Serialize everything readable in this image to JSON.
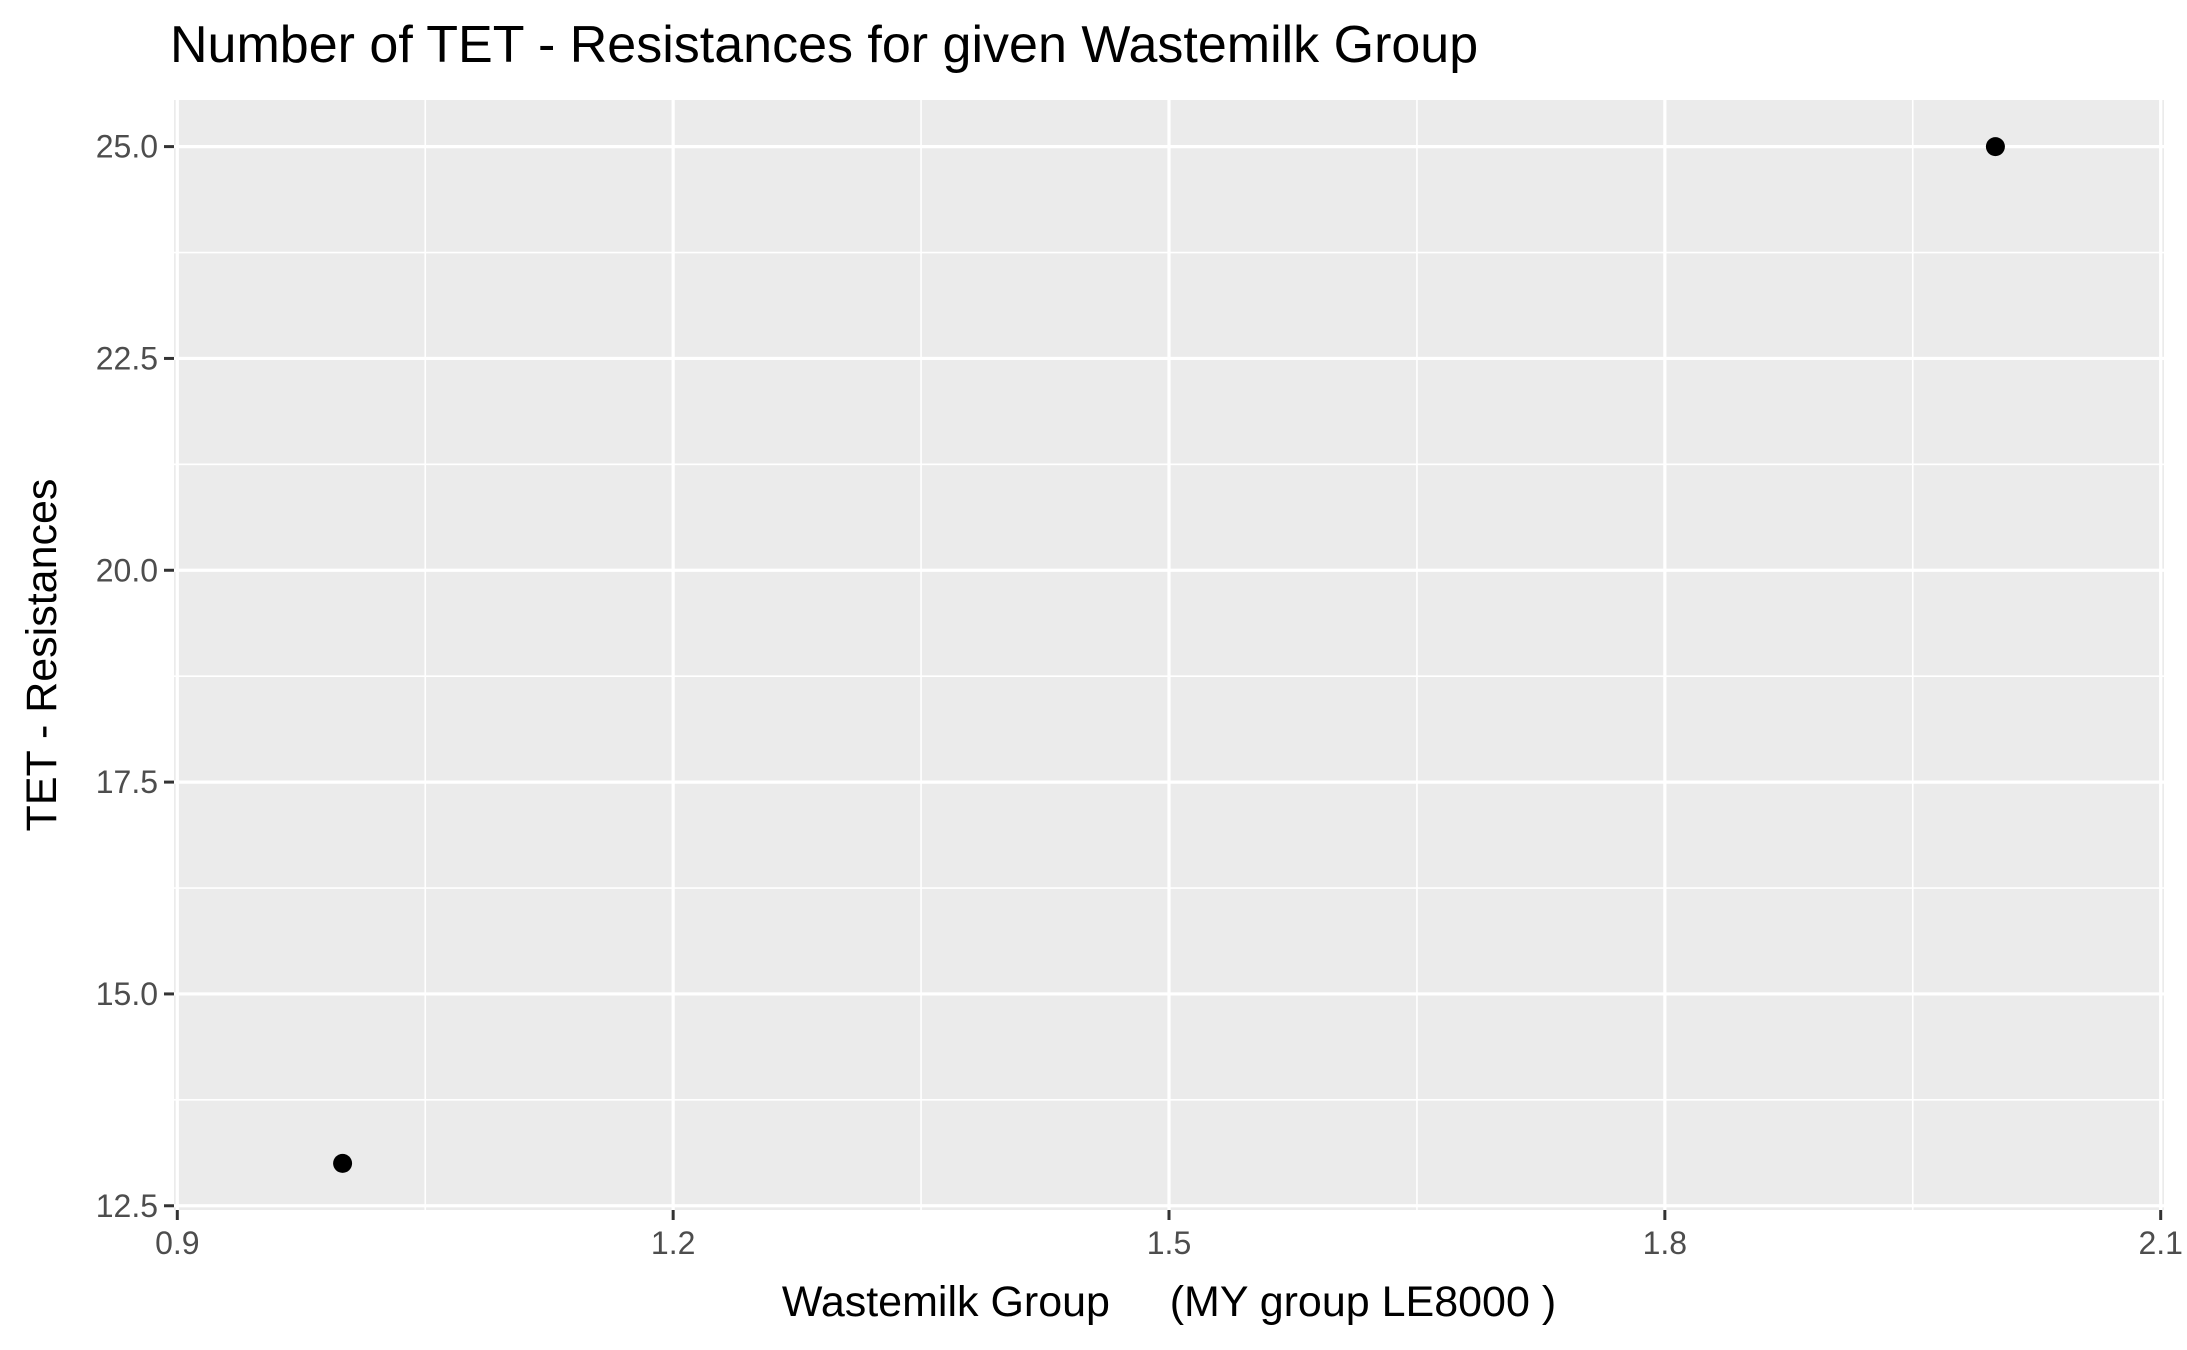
{
  "chart_data": {
    "type": "scatter",
    "title": "Number of TET - Resistances for given Wastemilk Group",
    "xlabel": "Wastemilk Group     (MY group LE8000 )",
    "ylabel": "TET - Resistances",
    "xlim": [
      0.9,
      2.1
    ],
    "ylim": [
      12.5,
      25.0
    ],
    "x_ticks": [
      0.9,
      1.2,
      1.5,
      1.8,
      2.1
    ],
    "x_tick_labels": [
      "0.9",
      "1.2",
      "1.5",
      "1.8",
      "2.1"
    ],
    "y_ticks": [
      12.5,
      15.0,
      17.5,
      20.0,
      22.5,
      25.0
    ],
    "y_tick_labels": [
      "12.5",
      "15.0",
      "17.5",
      "20.0",
      "22.5",
      "25.0"
    ],
    "grid": true,
    "legend": "none",
    "colors": {
      "panel_background": "#ebebeb",
      "grid_line": "#ffffff",
      "point": "#000000",
      "tick_text": "#4d4d4d",
      "tick_mark": "#333333"
    },
    "series": [
      {
        "points": [
          {
            "x": 1.0,
            "y": 13.0
          },
          {
            "x": 2.0,
            "y": 25.0
          }
        ]
      }
    ]
  }
}
